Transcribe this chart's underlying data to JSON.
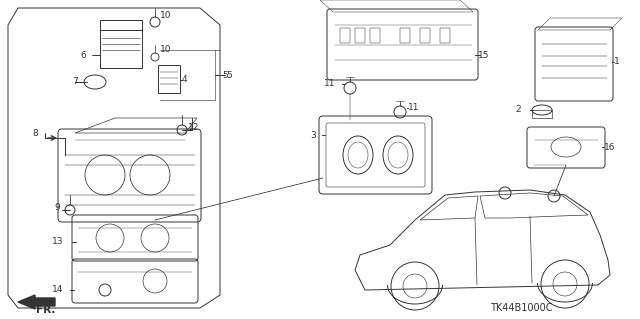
{
  "bg_color": "#ffffff",
  "line_color": "#333333",
  "diagram_code": "TK44B1000C",
  "fig_w": 6.4,
  "fig_h": 3.19,
  "dpi": 100,
  "lw": 0.7,
  "fs": 6.5
}
